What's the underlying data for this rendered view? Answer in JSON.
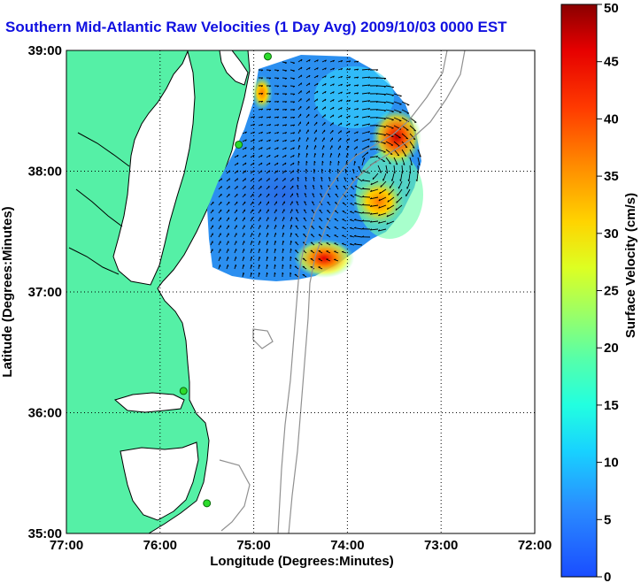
{
  "title": "Southern Mid-Atlantic Raw Velocities (1 Day Avg) 2009/10/03 0000 EST",
  "map": {
    "xlabel": "Longitude (Degrees:Minutes)",
    "ylabel": "Latitude (Degrees:Minutes)",
    "lon_ticks": [
      "77:00",
      "76:00",
      "75:00",
      "74:00",
      "73:00",
      "72:00"
    ],
    "lat_ticks": [
      "39:00",
      "38:00",
      "37:00",
      "36:00",
      "35:00"
    ],
    "colors": {
      "land": "#55f0a6",
      "water": "#ffffff",
      "coastline": "#000000",
      "bathymetry": "#909090",
      "grid": "#000000",
      "station": "#2cdc2c"
    }
  },
  "colorbar": {
    "label": "Surface Velocity (cm/s)",
    "ticks": [
      "0",
      "5",
      "10",
      "15",
      "20",
      "25",
      "30",
      "35",
      "40",
      "45",
      "50"
    ],
    "min": 0,
    "max": 50
  },
  "chart_data": {
    "type": "heatmap",
    "title": "Southern Mid-Atlantic Raw Velocities (1 Day Avg) 2009/10/03 0000 EST",
    "xlabel": "Longitude (Degrees:Minutes)",
    "ylabel": "Latitude (Degrees:Minutes)",
    "xlim": [
      -77,
      -72
    ],
    "ylim": [
      35,
      39
    ],
    "color_range": [
      0,
      50
    ],
    "colorbar_label": "Surface Velocity (cm/s)",
    "hotspots": [
      {
        "lon": -73.5,
        "lat": 38.3,
        "speed_cms": 48
      },
      {
        "lon": -73.8,
        "lat": 37.7,
        "speed_cms": 33
      },
      {
        "lon": -74.2,
        "lat": 37.2,
        "speed_cms": 45
      },
      {
        "lon": -74.9,
        "lat": 38.8,
        "speed_cms": 28
      }
    ],
    "stations": [
      {
        "lon": -74.85,
        "lat": 38.95
      },
      {
        "lon": -75.16,
        "lat": 38.22
      },
      {
        "lon": -75.75,
        "lat": 36.18
      },
      {
        "lon": -75.5,
        "lat": 35.25
      }
    ]
  }
}
